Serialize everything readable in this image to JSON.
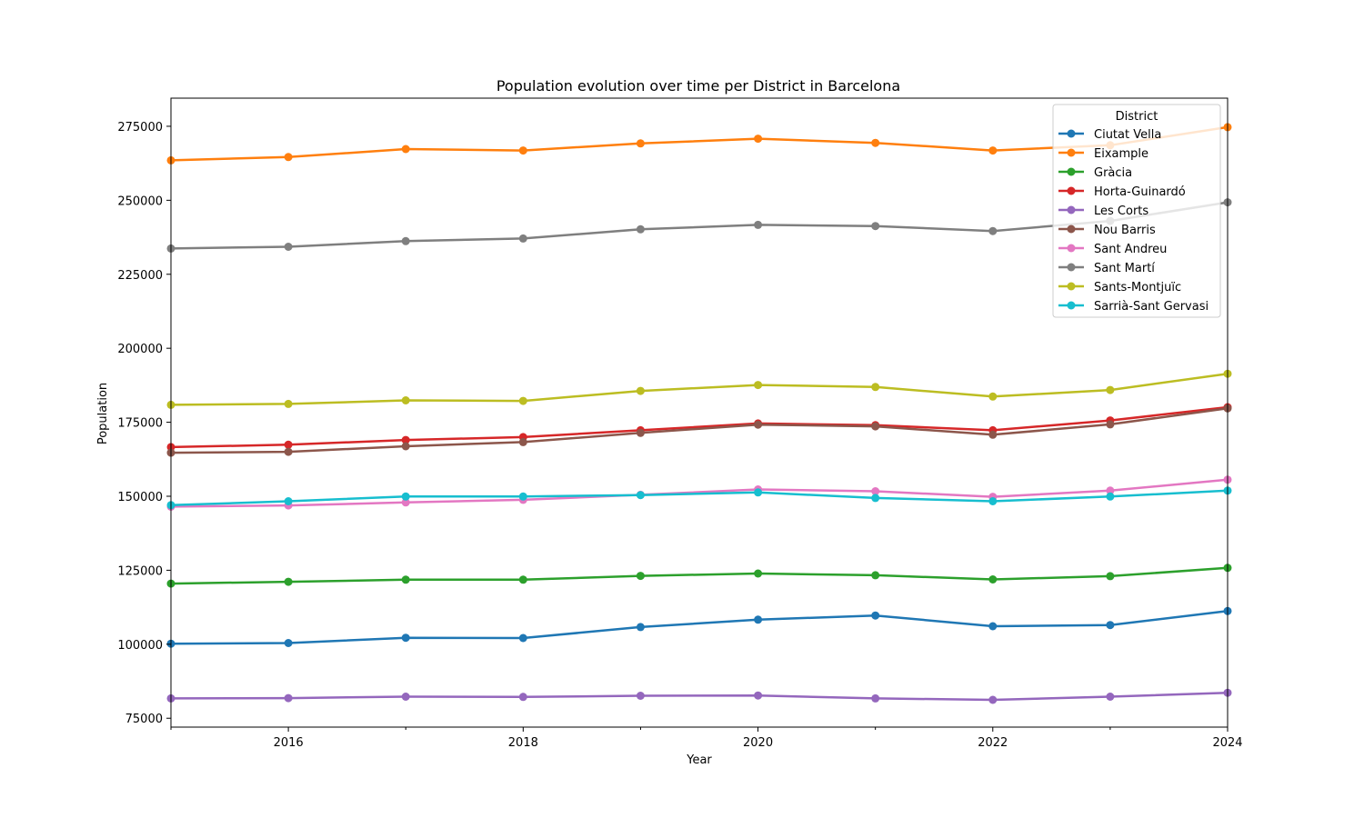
{
  "chart_data": {
    "type": "line",
    "title": "Population evolution over time per District in Barcelona",
    "xlabel": "Year",
    "ylabel": "Population",
    "xlim": [
      2015,
      2024
    ],
    "ylim": [
      72000,
      284500
    ],
    "xticks": [
      2016,
      2018,
      2020,
      2022,
      2024
    ],
    "xtick_labels": [
      "2016",
      "2018",
      "2020",
      "2022",
      "2024"
    ],
    "yticks": [
      75000,
      100000,
      125000,
      150000,
      175000,
      200000,
      225000,
      250000,
      275000
    ],
    "ytick_labels": [
      "75000",
      "100000",
      "125000",
      "150000",
      "175000",
      "200000",
      "225000",
      "250000",
      "275000"
    ],
    "grid": false,
    "legend": {
      "title": "District",
      "placement": "top-right"
    },
    "x": [
      2015,
      2016,
      2017,
      2018,
      2019,
      2020,
      2021,
      2022,
      2023,
      2024
    ],
    "series": [
      {
        "name": "Ciutat Vella",
        "color": "#1f77b4",
        "values": [
          100200,
          100400,
          102200,
          102100,
          105800,
          108300,
          109700,
          106100,
          106500,
          111200
        ]
      },
      {
        "name": "Eixample",
        "color": "#ff7f0e",
        "values": [
          263500,
          264600,
          267300,
          266800,
          269200,
          270800,
          269400,
          266800,
          268600,
          274700
        ]
      },
      {
        "name": "Gràcia",
        "color": "#2ca02c",
        "values": [
          120500,
          121100,
          121800,
          121800,
          123100,
          123900,
          123300,
          121900,
          123000,
          125800
        ]
      },
      {
        "name": "Horta-Guinardó",
        "color": "#d62728",
        "values": [
          166600,
          167400,
          169000,
          170000,
          172300,
          174600,
          174000,
          172300,
          175600,
          180100
        ]
      },
      {
        "name": "Les Corts",
        "color": "#9467bd",
        "values": [
          81700,
          81800,
          82300,
          82200,
          82600,
          82700,
          81700,
          81200,
          82300,
          83600
        ]
      },
      {
        "name": "Nou Barris",
        "color": "#8c564b",
        "values": [
          164700,
          165000,
          166900,
          168300,
          171400,
          174200,
          173600,
          170800,
          174300,
          179700
        ]
      },
      {
        "name": "Sant Andreu",
        "color": "#e377c2",
        "values": [
          146500,
          146900,
          147900,
          148800,
          150500,
          152300,
          151700,
          149800,
          151900,
          155600
        ]
      },
      {
        "name": "Sant Martí",
        "color": "#7f7f7f",
        "values": [
          233700,
          234300,
          236200,
          237100,
          240200,
          241700,
          241300,
          239600,
          243000,
          249300
        ]
      },
      {
        "name": "Sants-Montjuïc",
        "color": "#bcbd22",
        "values": [
          180900,
          181200,
          182400,
          182200,
          185600,
          187600,
          186900,
          183700,
          185900,
          191400
        ]
      },
      {
        "name": "Sarrià-Sant Gervasi",
        "color": "#17becf",
        "values": [
          147000,
          148300,
          149900,
          149900,
          150400,
          151300,
          149400,
          148300,
          149900,
          151900
        ]
      }
    ]
  }
}
